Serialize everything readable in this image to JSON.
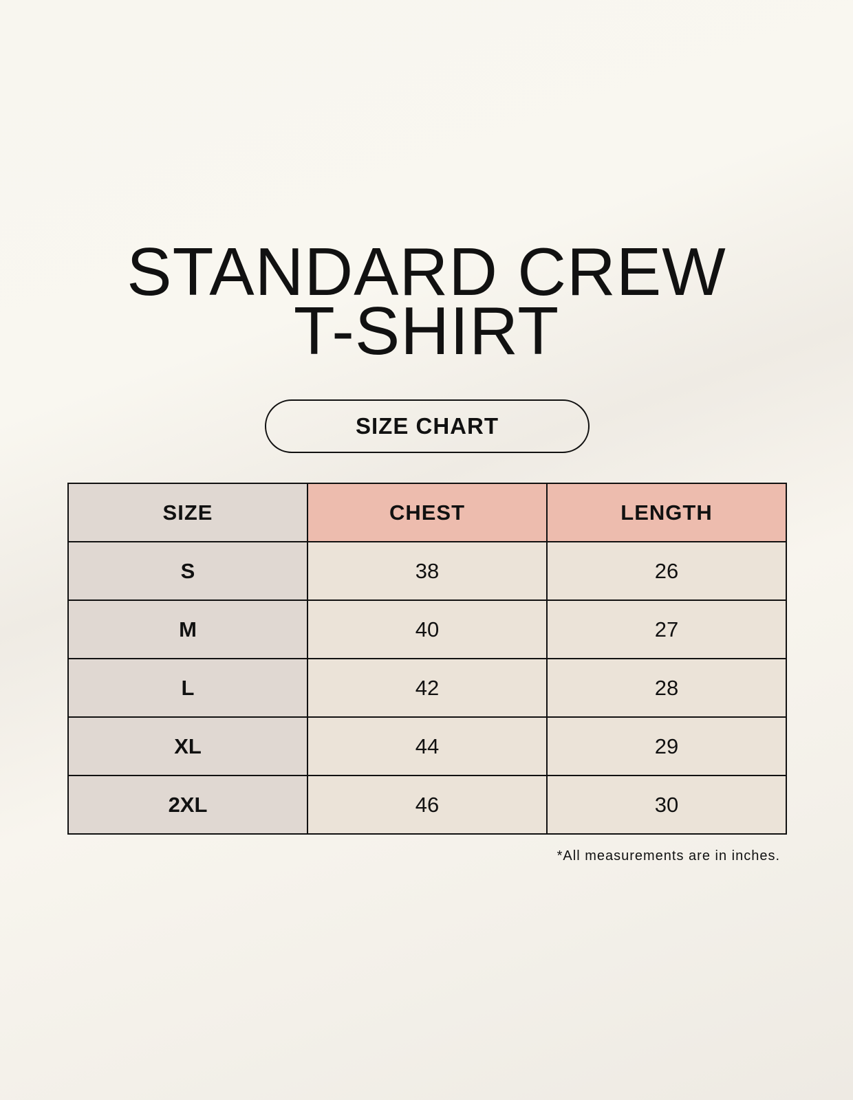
{
  "title": {
    "line1": "STANDARD CREW",
    "line2": "T-SHIRT"
  },
  "badge": "SIZE CHART",
  "table": {
    "headers": [
      "SIZE",
      "CHEST",
      "LENGTH"
    ],
    "rows": [
      {
        "size": "S",
        "chest": "38",
        "length": "26"
      },
      {
        "size": "M",
        "chest": "40",
        "length": "27"
      },
      {
        "size": "L",
        "chest": "42",
        "length": "28"
      },
      {
        "size": "XL",
        "chest": "44",
        "length": "29"
      },
      {
        "size": "2XL",
        "chest": "46",
        "length": "30"
      }
    ]
  },
  "footnote": "*All measurements are in inches.",
  "colors": {
    "size_column": "#e0d8d2",
    "header_accent": "#edbcae",
    "value_cells": "#ebe3d8"
  }
}
